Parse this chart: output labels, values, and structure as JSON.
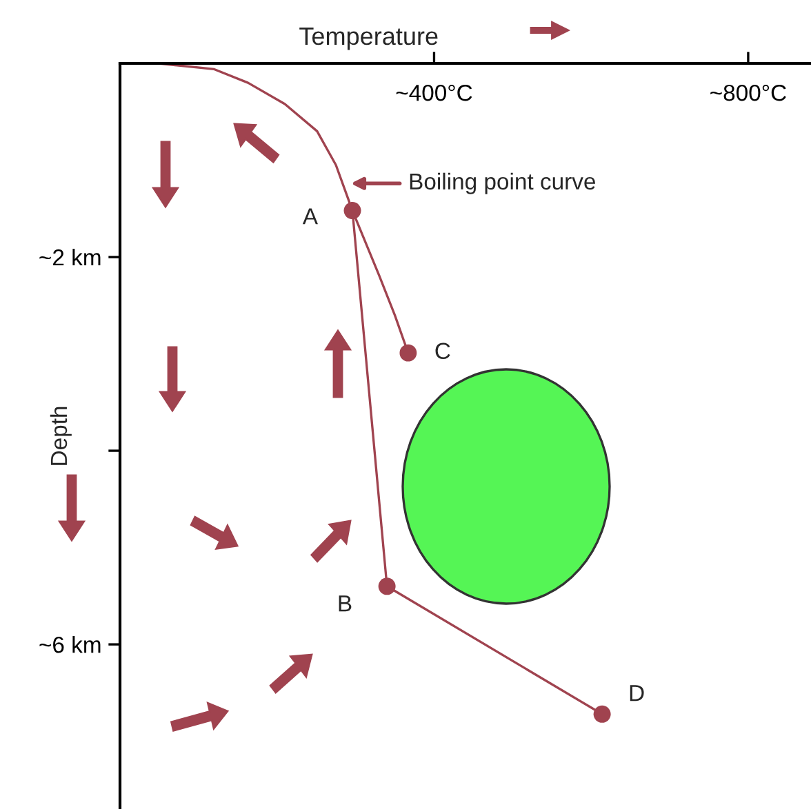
{
  "chart_data": {
    "type": "line",
    "xlabel": "Temperature",
    "ylabel": "Depth",
    "xlim": [
      0,
      880
    ],
    "ylim": [
      7.7,
      0
    ],
    "xticks": [
      {
        "value": 400,
        "label": "~400°C"
      },
      {
        "value": 800,
        "label": "~800°C"
      }
    ],
    "yticks": [
      {
        "value": 2,
        "label": "~2 km"
      },
      {
        "value": 4,
        "label": null
      },
      {
        "value": 6,
        "label": "~6 km"
      }
    ],
    "series": [
      {
        "color": "#a0434f",
        "marker": "none",
        "x": [
          49,
          120,
          163,
          210,
          251,
          275,
          296,
          330,
          350,
          367
        ],
        "values": [
          0,
          0.06,
          0.2,
          0.42,
          0.7,
          1.05,
          1.52,
          2.19,
          2.6,
          2.99
        ]
      },
      {
        "color": "#a0434f",
        "marker": "circle",
        "x": [
          296,
          340,
          614
        ],
        "values": [
          1.52,
          5.4,
          6.72
        ]
      },
      {
        "type": "scatter",
        "color": "#a0434f",
        "marker": "circle",
        "x": [
          367
        ],
        "values": [
          2.99
        ]
      }
    ],
    "annotations": [
      {
        "text": "Boiling point curve",
        "x": 294,
        "y": 1.24
      },
      {
        "text": "A",
        "x": 296,
        "y": 1.52
      },
      {
        "text": "C",
        "x": 367,
        "y": 2.99
      },
      {
        "text": "B",
        "x": 340,
        "y": 5.4
      },
      {
        "text": "D",
        "x": 614,
        "y": 6.72
      }
    ],
    "grid": false,
    "legend": false
  }
}
